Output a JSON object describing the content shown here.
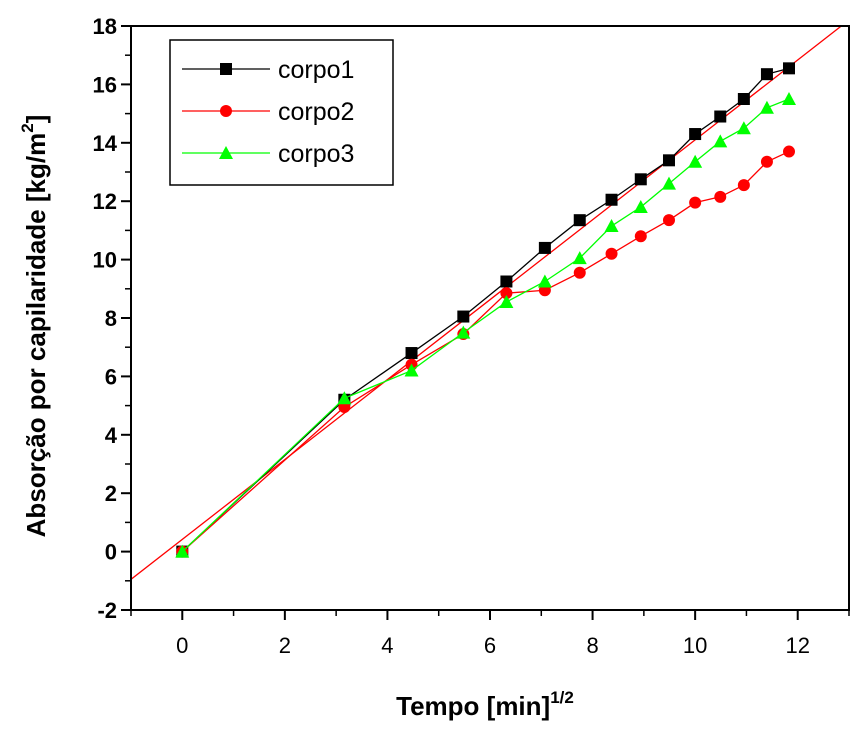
{
  "chart_data": {
    "type": "line",
    "xlabel": "Tempo [min]",
    "xlabel_superscript": "1/2",
    "ylabel": "Absorção por capilaridade [kg/m",
    "ylabel_superscript": "2",
    "ylabel_suffix": "]",
    "xlim": [
      -1,
      13
    ],
    "ylim": [
      -2,
      18
    ],
    "x_ticks": [
      0,
      2,
      4,
      6,
      8,
      10,
      12
    ],
    "y_ticks": [
      -2,
      0,
      2,
      4,
      6,
      8,
      10,
      12,
      14,
      16,
      18
    ],
    "grid": false,
    "legend_position": "top-left",
    "series": [
      {
        "name": "corpo1",
        "color": "#000000",
        "marker": "square",
        "x": [
          0,
          3.16,
          4.47,
          5.48,
          6.32,
          7.07,
          7.75,
          8.37,
          8.94,
          9.49,
          10.0,
          10.49,
          10.95,
          11.4,
          11.83
        ],
        "y": [
          0.0,
          5.2,
          6.8,
          8.05,
          9.25,
          10.4,
          11.35,
          12.05,
          12.75,
          13.4,
          14.3,
          14.9,
          15.5,
          16.35,
          16.55
        ]
      },
      {
        "name": "corpo2",
        "color": "#ff0000",
        "marker": "circle",
        "x": [
          0,
          3.16,
          4.47,
          5.48,
          6.32,
          7.07,
          7.75,
          8.37,
          8.94,
          9.49,
          10.0,
          10.49,
          10.95,
          11.4,
          11.83
        ],
        "y": [
          0.0,
          4.95,
          6.4,
          7.45,
          8.85,
          8.95,
          9.55,
          10.2,
          10.8,
          11.35,
          11.95,
          12.15,
          12.55,
          13.35,
          13.7
        ]
      },
      {
        "name": "corpo3",
        "color": "#00ff00",
        "marker": "triangle",
        "x": [
          0,
          3.16,
          4.47,
          5.48,
          6.32,
          7.07,
          7.75,
          8.37,
          8.94,
          9.49,
          10.0,
          10.49,
          10.95,
          11.4,
          11.83
        ],
        "y": [
          0.0,
          5.25,
          6.2,
          7.5,
          8.55,
          9.25,
          10.05,
          11.15,
          11.8,
          12.6,
          13.35,
          14.05,
          14.5,
          15.2,
          15.5
        ]
      }
    ],
    "fit_line": {
      "color": "#ff0000",
      "x": [
        -1,
        12.85
      ],
      "y": [
        -0.95,
        18
      ]
    }
  }
}
